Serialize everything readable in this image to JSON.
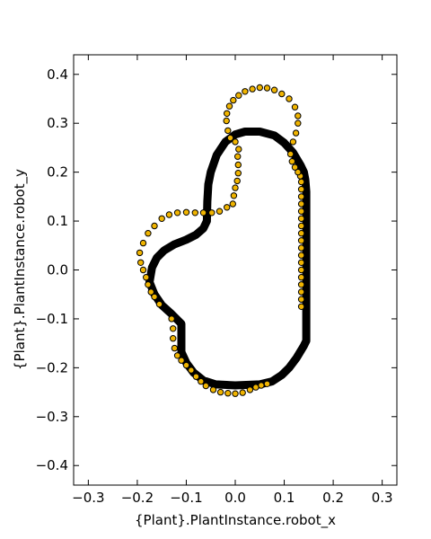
{
  "chart_data": {
    "type": "scatter",
    "xlabel": "{Plant}.PlantInstance.robot_x",
    "ylabel": "{Plant}.PlantInstance.robot_y",
    "xlim": [
      -0.33,
      0.33
    ],
    "ylim": [
      -0.44,
      0.44
    ],
    "xticks": [
      -0.3,
      -0.2,
      -0.1,
      0.0,
      0.1,
      0.2,
      0.3
    ],
    "xtick_labels": [
      "−0.3",
      "−0.2",
      "−0.1",
      "0.0",
      "0.1",
      "0.2",
      "0.3"
    ],
    "yticks": [
      0.4,
      0.3,
      0.2,
      0.1,
      0.0,
      -0.1,
      -0.2,
      -0.3,
      -0.4
    ],
    "ytick_labels": [
      "0.4",
      "0.3",
      "0.2",
      "0.1",
      "0.0",
      "−0.1",
      "−0.2",
      "−0.3",
      "−0.4"
    ],
    "grid": false,
    "colors": {
      "line": "#000000",
      "marker_fill": "#f0b400",
      "marker_edge": "#000000"
    },
    "series": [
      {
        "kind": "line",
        "points": [
          [
            0.145,
            -0.145
          ],
          [
            0.14,
            -0.155
          ],
          [
            0.125,
            -0.18
          ],
          [
            0.11,
            -0.2
          ],
          [
            0.095,
            -0.215
          ],
          [
            0.075,
            -0.228
          ],
          [
            0.05,
            -0.234
          ],
          [
            0.0,
            -0.236
          ],
          [
            -0.04,
            -0.234
          ],
          [
            -0.065,
            -0.226
          ],
          [
            -0.085,
            -0.21
          ],
          [
            -0.1,
            -0.19
          ],
          [
            -0.11,
            -0.168
          ],
          [
            -0.11,
            -0.11
          ],
          [
            -0.13,
            -0.09
          ],
          [
            -0.15,
            -0.072
          ],
          [
            -0.165,
            -0.05
          ],
          [
            -0.175,
            -0.025
          ],
          [
            -0.17,
            0.005
          ],
          [
            -0.16,
            0.025
          ],
          [
            -0.145,
            0.04
          ],
          [
            -0.125,
            0.052
          ],
          [
            -0.1,
            0.062
          ],
          [
            -0.08,
            0.072
          ],
          [
            -0.065,
            0.085
          ],
          [
            -0.058,
            0.1
          ],
          [
            -0.057,
            0.14
          ],
          [
            -0.055,
            0.175
          ],
          [
            -0.05,
            0.2
          ],
          [
            -0.038,
            0.235
          ],
          [
            -0.02,
            0.262
          ],
          [
            0.0,
            0.277
          ],
          [
            0.02,
            0.283
          ],
          [
            0.05,
            0.283
          ],
          [
            0.08,
            0.275
          ],
          [
            0.1,
            0.26
          ],
          [
            0.118,
            0.24
          ],
          [
            0.133,
            0.215
          ],
          [
            0.14,
            0.2
          ],
          [
            0.143,
            0.185
          ],
          [
            0.145,
            0.16
          ],
          [
            0.145,
            -0.145
          ]
        ]
      },
      {
        "kind": "markers",
        "points": [
          [
            0.135,
            -0.075
          ],
          [
            0.135,
            -0.06
          ],
          [
            0.135,
            -0.045
          ],
          [
            0.135,
            -0.03
          ],
          [
            0.135,
            -0.015
          ],
          [
            0.135,
            0.0
          ],
          [
            0.135,
            0.015
          ],
          [
            0.135,
            0.03
          ],
          [
            0.135,
            0.045
          ],
          [
            0.135,
            0.06
          ],
          [
            0.135,
            0.075
          ],
          [
            0.135,
            0.09
          ],
          [
            0.135,
            0.105
          ],
          [
            0.135,
            0.12
          ],
          [
            0.135,
            0.135
          ],
          [
            0.135,
            0.15
          ],
          [
            0.135,
            0.165
          ],
          [
            0.135,
            0.18
          ],
          [
            0.133,
            0.192
          ],
          [
            0.128,
            0.2
          ],
          [
            0.122,
            0.21
          ],
          [
            0.116,
            0.222
          ],
          [
            0.113,
            0.237
          ],
          [
            0.118,
            0.262
          ],
          [
            0.124,
            0.28
          ],
          [
            0.128,
            0.3
          ],
          [
            0.128,
            0.315
          ],
          [
            0.122,
            0.333
          ],
          [
            0.11,
            0.35
          ],
          [
            0.095,
            0.36
          ],
          [
            0.08,
            0.368
          ],
          [
            0.065,
            0.372
          ],
          [
            0.05,
            0.373
          ],
          [
            0.035,
            0.37
          ],
          [
            0.02,
            0.365
          ],
          [
            0.007,
            0.357
          ],
          [
            -0.004,
            0.347
          ],
          [
            -0.012,
            0.335
          ],
          [
            -0.017,
            0.32
          ],
          [
            -0.018,
            0.305
          ],
          [
            -0.015,
            0.285
          ],
          [
            -0.01,
            0.27
          ],
          [
            0.0,
            0.262
          ],
          [
            0.007,
            0.247
          ],
          [
            0.005,
            0.232
          ],
          [
            0.006,
            0.215
          ],
          [
            0.006,
            0.198
          ],
          [
            0.004,
            0.182
          ],
          [
            0.0,
            0.168
          ],
          [
            -0.003,
            0.152
          ],
          [
            -0.005,
            0.135
          ],
          [
            -0.017,
            0.128
          ],
          [
            -0.032,
            0.12
          ],
          [
            -0.048,
            0.117
          ],
          [
            -0.065,
            0.117
          ],
          [
            -0.082,
            0.117
          ],
          [
            -0.1,
            0.118
          ],
          [
            -0.118,
            0.117
          ],
          [
            -0.135,
            0.113
          ],
          [
            -0.15,
            0.105
          ],
          [
            -0.165,
            0.09
          ],
          [
            -0.178,
            0.075
          ],
          [
            -0.188,
            0.055
          ],
          [
            -0.195,
            0.035
          ],
          [
            -0.193,
            0.015
          ],
          [
            -0.188,
            0.0
          ],
          [
            -0.182,
            -0.015
          ],
          [
            -0.178,
            -0.03
          ],
          [
            -0.172,
            -0.045
          ],
          [
            -0.165,
            -0.055
          ],
          [
            -0.155,
            -0.07
          ],
          [
            -0.13,
            -0.1
          ],
          [
            -0.127,
            -0.12
          ],
          [
            -0.127,
            -0.14
          ],
          [
            -0.124,
            -0.16
          ],
          [
            -0.118,
            -0.175
          ],
          [
            -0.11,
            -0.185
          ],
          [
            -0.1,
            -0.195
          ],
          [
            -0.09,
            -0.205
          ],
          [
            -0.08,
            -0.218
          ],
          [
            -0.07,
            -0.228
          ],
          [
            -0.06,
            -0.237
          ],
          [
            -0.045,
            -0.245
          ],
          [
            -0.03,
            -0.25
          ],
          [
            -0.015,
            -0.252
          ],
          [
            0.0,
            -0.253
          ],
          [
            0.015,
            -0.251
          ],
          [
            0.03,
            -0.245
          ],
          [
            0.042,
            -0.24
          ],
          [
            0.053,
            -0.236
          ],
          [
            0.065,
            -0.233
          ]
        ]
      }
    ]
  }
}
